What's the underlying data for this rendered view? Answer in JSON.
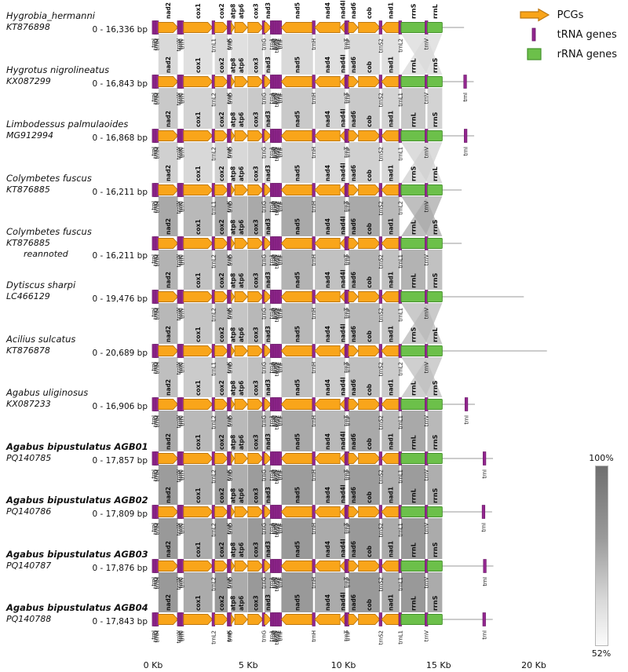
{
  "figure": {
    "legend": {
      "items": [
        {
          "label": "PCGs",
          "type": "pcg"
        },
        {
          "label": "tRNA genes",
          "type": "trna"
        },
        {
          "label": "rRNA genes",
          "type": "rrna"
        }
      ]
    },
    "identity_scale": {
      "top_label": "100%",
      "bottom_label": "52%"
    },
    "axis": {
      "ticks": [
        {
          "kb": 0,
          "label": "0 Kb"
        },
        {
          "kb": 5,
          "label": "5 Kb"
        },
        {
          "kb": 10,
          "label": "10 Kb"
        },
        {
          "kb": 15,
          "label": "15 Kb"
        },
        {
          "kb": 20,
          "label": "20 Kb"
        }
      ]
    },
    "colors": {
      "pcg_fill": "#F9A51A",
      "pcg_stroke": "#BD7710",
      "trna_fill": "#93278F",
      "trna_stroke": "#651563",
      "rrna_fill": "#6CC04A",
      "rrna_stroke": "#44912B",
      "baseline": "#9a9a9a",
      "red_label": "#E8000B",
      "text": "#111111"
    },
    "gene_template": [
      {
        "label": "trnI",
        "type": "trna",
        "kb": 0.03
      },
      {
        "label": "trnQ",
        "type": "trna",
        "kb": 0.12
      },
      {
        "label": "trnM",
        "type": "trna",
        "kb": 0.21
      },
      {
        "label": "nad2",
        "type": "pcg",
        "start": 0.28,
        "end": 1.3,
        "strand": 1
      },
      {
        "label": "trnW",
        "type": "trna",
        "kb": 1.35
      },
      {
        "label": "trnC",
        "type": "trna",
        "kb": 1.44
      },
      {
        "label": "trnY",
        "type": "trna",
        "kb": 1.53
      },
      {
        "label": "cox1",
        "type": "pcg",
        "start": 1.6,
        "end": 3.12,
        "strand": 1
      },
      {
        "id": "trn_after_cox1",
        "label": "trnL2",
        "type": "trna",
        "kb": 3.17
      },
      {
        "label": "cox2",
        "type": "pcg",
        "start": 3.24,
        "end": 3.92,
        "strand": 1
      },
      {
        "label": "trnK",
        "type": "trna",
        "kb": 3.97
      },
      {
        "label": "trnD",
        "type": "trna",
        "kb": 4.05
      },
      {
        "label": "atp8",
        "type": "pcg",
        "start": 4.1,
        "end": 4.27,
        "strand": 1
      },
      {
        "label": "atp6",
        "type": "pcg",
        "start": 4.29,
        "end": 4.96,
        "strand": 1
      },
      {
        "label": "cox3",
        "type": "pcg",
        "start": 4.98,
        "end": 5.77,
        "strand": 1
      },
      {
        "label": "trnG",
        "type": "trna",
        "kb": 5.81
      },
      {
        "label": "nad3",
        "type": "pcg",
        "start": 5.85,
        "end": 6.19,
        "strand": 1
      },
      {
        "label": "trnA",
        "type": "trna",
        "kb": 6.23
      },
      {
        "label": "trnR",
        "type": "trna",
        "kb": 6.32
      },
      {
        "label": "trnN",
        "type": "trna",
        "kb": 6.41
      },
      {
        "label": "trnS1",
        "type": "trna",
        "kb": 6.5
      },
      {
        "label": "trnE",
        "type": "trna",
        "kb": 6.59
      },
      {
        "label": "trnF",
        "type": "trna",
        "kb": 6.68
      },
      {
        "label": "nad5",
        "type": "pcg",
        "start": 6.74,
        "end": 8.4,
        "strand": -1
      },
      {
        "label": "trnH",
        "type": "trna",
        "kb": 8.44
      },
      {
        "label": "nad4",
        "type": "pcg",
        "start": 8.5,
        "end": 9.82,
        "strand": -1
      },
      {
        "label": "nad4l",
        "type": "pcg",
        "start": 9.83,
        "end": 10.1,
        "strand": -1
      },
      {
        "label": "trnT",
        "type": "trna",
        "kb": 10.14
      },
      {
        "label": "trnP",
        "type": "trna",
        "kb": 10.22
      },
      {
        "label": "nad6",
        "type": "pcg",
        "start": 10.27,
        "end": 10.77,
        "strand": 1
      },
      {
        "label": "cob",
        "type": "pcg",
        "start": 10.79,
        "end": 11.91,
        "strand": 1
      },
      {
        "label": "trnS2",
        "type": "trna",
        "kb": 11.95
      },
      {
        "label": "nad1",
        "type": "pcg",
        "start": 12.01,
        "end": 12.94,
        "strand": -1
      },
      {
        "id": "trn_after_nad1",
        "label": "trnL1",
        "type": "trna",
        "kb": 12.98
      },
      {
        "id": "rrnA",
        "label": "rrnL",
        "type": "rrna",
        "start": 13.03,
        "end": 14.31
      },
      {
        "label": "trnV",
        "type": "trna",
        "kb": 14.36
      },
      {
        "id": "rrnB",
        "label": "rrnS",
        "type": "rrna",
        "start": 14.41,
        "end": 15.19
      }
    ],
    "band_segments_kb": [
      [
        0.28,
        1.3
      ],
      [
        1.6,
        3.12
      ],
      [
        3.24,
        3.92
      ],
      [
        4.1,
        4.96
      ],
      [
        4.98,
        5.77
      ],
      [
        5.85,
        6.19
      ],
      [
        6.74,
        8.4
      ],
      [
        8.5,
        10.1
      ],
      [
        10.27,
        11.91
      ],
      [
        12.01,
        12.94
      ],
      [
        13.03,
        14.31
      ],
      [
        14.41,
        15.19
      ]
    ],
    "pair_shades": [
      "#d9d9d9",
      "#c9c9c9",
      "#d0d0d0",
      "#a9a9a9",
      "#b3b3b3",
      "#b8b8b8",
      "#bfbfbf",
      "#a9a9a9",
      "#9c9c9c",
      "#999999",
      "#999999"
    ],
    "rows": [
      {
        "name": "Hygrobia_hermanni",
        "accession": "KT876898",
        "note": "",
        "range": "0 - 16,336 bp",
        "length_kb": 16.336,
        "bold": false,
        "end_trni": false,
        "overrides": [
          {
            "id": "rrnA",
            "label": "rrnS",
            "red": true
          },
          {
            "id": "rrnB",
            "label": "rrnL",
            "red": true
          },
          {
            "id": "trn_after_cox1",
            "label": "trnL1",
            "red": true
          },
          {
            "id": "trn_after_nad1",
            "label": "trnL2",
            "red": true
          }
        ]
      },
      {
        "name": "Hygrotus nigrolineatus",
        "accession": "KX087299",
        "note": "",
        "range": "0 - 16,843 bp",
        "length_kb": 16.843,
        "bold": false,
        "end_trni": true,
        "overrides": []
      },
      {
        "name": "Limbodessus palmulaoides",
        "accession": "MG912994",
        "note": "",
        "range": "0 - 16,868 bp",
        "length_kb": 16.868,
        "bold": false,
        "end_trni": true,
        "overrides": []
      },
      {
        "name": "Colymbetes fuscus",
        "accession": "KT876885",
        "note": "",
        "range": "0 - 16,211 bp",
        "length_kb": 16.211,
        "bold": false,
        "end_trni": false,
        "overrides": [
          {
            "id": "rrnA",
            "label": "rrnS",
            "red": true
          },
          {
            "id": "rrnB",
            "label": "rrnL",
            "red": true
          },
          {
            "id": "trn_after_cox1",
            "label": "trnL1",
            "red": true
          },
          {
            "id": "trn_after_nad1",
            "label": "trnL2",
            "red": true
          }
        ]
      },
      {
        "name": "Colymbetes fuscus",
        "accession": "KT876885",
        "note": "reannoted",
        "range": "0 - 16,211 bp",
        "length_kb": 16.211,
        "bold": false,
        "end_trni": false,
        "overrides": []
      },
      {
        "name": "Dytiscus sharpi",
        "accession": "LC466129",
        "note": "",
        "range": "0 - 19,476 bp",
        "length_kb": 19.476,
        "bold": false,
        "end_trni": false,
        "overrides": []
      },
      {
        "name": "Acilius sulcatus",
        "accession": "KT876878",
        "note": "",
        "range": "0 - 20,689 bp",
        "length_kb": 20.689,
        "bold": false,
        "end_trni": false,
        "overrides": [
          {
            "id": "rrnA",
            "label": "rrnS",
            "red": true
          },
          {
            "id": "rrnB",
            "label": "rrnL",
            "red": true
          },
          {
            "id": "trn_after_cox1",
            "label": "trnL1",
            "red": true
          },
          {
            "id": "trn_after_nad1",
            "label": "trnL2",
            "red": true
          }
        ]
      },
      {
        "name": "Agabus uliginosus",
        "accession": "KX087233",
        "note": "",
        "range": "0 - 16,906 bp",
        "length_kb": 16.906,
        "bold": false,
        "end_trni": true,
        "overrides": []
      },
      {
        "name": "Agabus bipustulatus AGB01",
        "accession": "PQ140785",
        "note": "",
        "range": "0 - 17,857 bp",
        "length_kb": 17.857,
        "bold": true,
        "end_trni": true,
        "overrides": []
      },
      {
        "name": "Agabus bipustulatus AGB02",
        "accession": "PQ140786",
        "note": "",
        "range": "0 - 17,809 bp",
        "length_kb": 17.809,
        "bold": true,
        "end_trni": true,
        "overrides": []
      },
      {
        "name": "Agabus bipustulatus AGB03",
        "accession": "PQ140787",
        "note": "",
        "range": "0 - 17,876 bp",
        "length_kb": 17.876,
        "bold": true,
        "end_trni": true,
        "overrides": []
      },
      {
        "name": "Agabus bipustulatus AGB04",
        "accession": "PQ140788",
        "note": "",
        "range": "0 - 17,843 bp",
        "length_kb": 17.843,
        "bold": true,
        "end_trni": true,
        "overrides": []
      }
    ],
    "end_trna_label": "trnI"
  }
}
